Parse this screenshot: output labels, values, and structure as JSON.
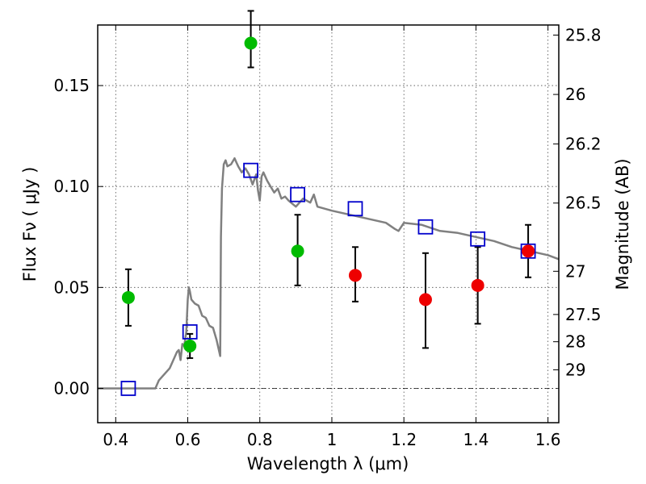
{
  "chart_data": {
    "type": "scatter",
    "xlabel": "Wavelength  λ (μm)",
    "ylabel": "Flux  Fν  ( μJy )",
    "ylabel_right": "Magnitude (AB)",
    "xlim": [
      0.35,
      1.63
    ],
    "ylim": [
      -0.017,
      0.18
    ],
    "grid": true,
    "x_ticks": [
      0.4,
      0.6,
      0.8,
      1.0,
      1.2,
      1.4,
      1.6
    ],
    "x_tick_labels": [
      "0.4",
      "0.6",
      "0.8",
      "1",
      "1.2",
      "1.4",
      "1.6"
    ],
    "y_ticks": [
      0.0,
      0.05,
      0.1,
      0.15
    ],
    "y_tick_labels": [
      "0.00",
      "0.05",
      "0.10",
      "0.15"
    ],
    "right_ticks": [
      {
        "label": "25.8",
        "flux": 0.175
      },
      {
        "label": "26",
        "flux": 0.1456
      },
      {
        "label": "26.2",
        "flux": 0.1211
      },
      {
        "label": "26.5",
        "flux": 0.0918
      },
      {
        "label": "27",
        "flux": 0.058
      },
      {
        "label": "27.5",
        "flux": 0.0366
      },
      {
        "label": "28",
        "flux": 0.0231
      },
      {
        "label": "29",
        "flux": 0.0092
      }
    ],
    "colors": {
      "green": "#00bb00",
      "red": "#ee0000",
      "model_points": "#0000cc",
      "sed_line": "#808080"
    },
    "series": [
      {
        "marker": "circle",
        "color": "green",
        "x": [
          0.435,
          0.606,
          0.775,
          0.905
        ],
        "y": [
          0.045,
          0.021,
          0.171,
          0.068
        ],
        "yerr_low": [
          0.031,
          0.015,
          0.159,
          0.051
        ],
        "yerr_high": [
          0.059,
          0.027,
          0.187,
          0.086
        ]
      },
      {
        "marker": "circle",
        "color": "red",
        "x": [
          1.065,
          1.26,
          1.405,
          1.545
        ],
        "y": [
          0.056,
          0.044,
          0.051,
          0.068
        ],
        "yerr_low": [
          0.043,
          0.02,
          0.032,
          0.055
        ],
        "yerr_high": [
          0.07,
          0.067,
          0.07,
          0.081
        ]
      },
      {
        "marker": "square-open",
        "color": "model_points",
        "x": [
          0.435,
          0.606,
          0.775,
          0.905,
          1.065,
          1.26,
          1.405,
          1.545
        ],
        "y": [
          0.0,
          0.028,
          0.108,
          0.096,
          0.089,
          0.08,
          0.074,
          0.068
        ]
      },
      {
        "marker": "line",
        "color": "sed_line",
        "x": [
          0.35,
          0.51,
          0.52,
          0.55,
          0.57,
          0.575,
          0.58,
          0.585,
          0.59,
          0.596,
          0.6,
          0.603,
          0.606,
          0.61,
          0.62,
          0.63,
          0.64,
          0.65,
          0.66,
          0.67,
          0.68,
          0.69,
          0.692,
          0.695,
          0.7,
          0.705,
          0.71,
          0.72,
          0.73,
          0.735,
          0.74,
          0.75,
          0.76,
          0.77,
          0.78,
          0.79,
          0.795,
          0.8,
          0.805,
          0.81,
          0.82,
          0.83,
          0.84,
          0.85,
          0.86,
          0.87,
          0.88,
          0.9,
          0.92,
          0.94,
          0.95,
          0.96,
          1.0,
          1.05,
          1.1,
          1.15,
          1.175,
          1.185,
          1.2,
          1.25,
          1.3,
          1.35,
          1.4,
          1.45,
          1.5,
          1.55,
          1.6,
          1.63
        ],
        "y": [
          0.0,
          0.0,
          0.004,
          0.01,
          0.018,
          0.019,
          0.014,
          0.022,
          0.021,
          0.028,
          0.044,
          0.05,
          0.048,
          0.044,
          0.042,
          0.041,
          0.036,
          0.035,
          0.031,
          0.03,
          0.024,
          0.016,
          0.075,
          0.099,
          0.111,
          0.113,
          0.11,
          0.111,
          0.114,
          0.112,
          0.11,
          0.107,
          0.109,
          0.106,
          0.101,
          0.106,
          0.098,
          0.093,
          0.105,
          0.107,
          0.103,
          0.1,
          0.097,
          0.099,
          0.094,
          0.095,
          0.093,
          0.09,
          0.094,
          0.092,
          0.096,
          0.09,
          0.088,
          0.086,
          0.084,
          0.082,
          0.079,
          0.078,
          0.082,
          0.081,
          0.078,
          0.077,
          0.075,
          0.073,
          0.07,
          0.068,
          0.066,
          0.064
        ]
      }
    ]
  }
}
